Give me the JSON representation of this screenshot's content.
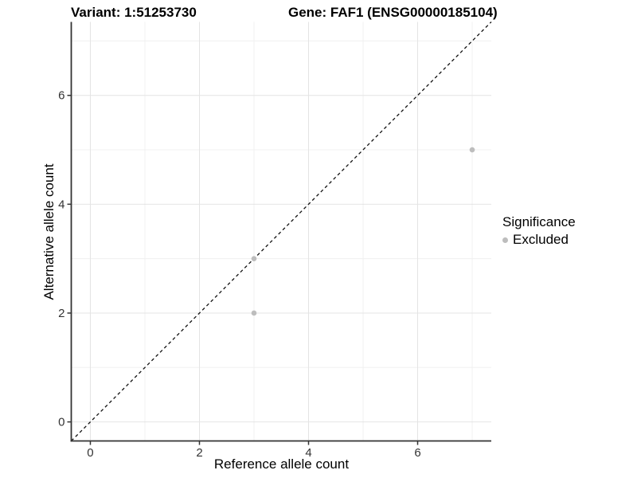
{
  "header": {
    "variant_title": "Variant: 1:51253730",
    "gene_title": "Gene: FAF1 (ENSG00000185104)"
  },
  "axes": {
    "x_label": "Reference allele count",
    "y_label": "Alternative allele count"
  },
  "legend": {
    "title": "Significance",
    "items": [
      {
        "label": "Excluded",
        "color": "#bdbdbd"
      }
    ]
  },
  "chart_data": {
    "type": "scatter",
    "title": "Variant: 1:51253730   Gene: FAF1 (ENSG00000185104)",
    "xlabel": "Reference allele count",
    "ylabel": "Alternative allele count",
    "xlim": [
      -0.35,
      7.35
    ],
    "ylim": [
      -0.35,
      7.35
    ],
    "x_major_ticks": [
      0,
      2,
      4,
      6
    ],
    "y_major_ticks": [
      0,
      2,
      4,
      6
    ],
    "x_minor_ticks": [
      1,
      3,
      5,
      7
    ],
    "y_minor_ticks": [
      1,
      3,
      5,
      7
    ],
    "grid": true,
    "legend_position": "right",
    "series": [
      {
        "name": "Excluded",
        "color": "#bdbdbd",
        "points": [
          {
            "x": 3,
            "y": 2
          },
          {
            "x": 3,
            "y": 3
          },
          {
            "x": 7,
            "y": 5
          }
        ]
      }
    ],
    "reference_line": {
      "kind": "identity",
      "style": "dashed",
      "color": "#111111"
    }
  },
  "colors": {
    "background": "#ffffff",
    "grid_major": "#e4e4e4",
    "grid_minor": "#f0f0f0",
    "axis": "#333333",
    "tick_text": "#333333",
    "point": "#bdbdbd"
  }
}
